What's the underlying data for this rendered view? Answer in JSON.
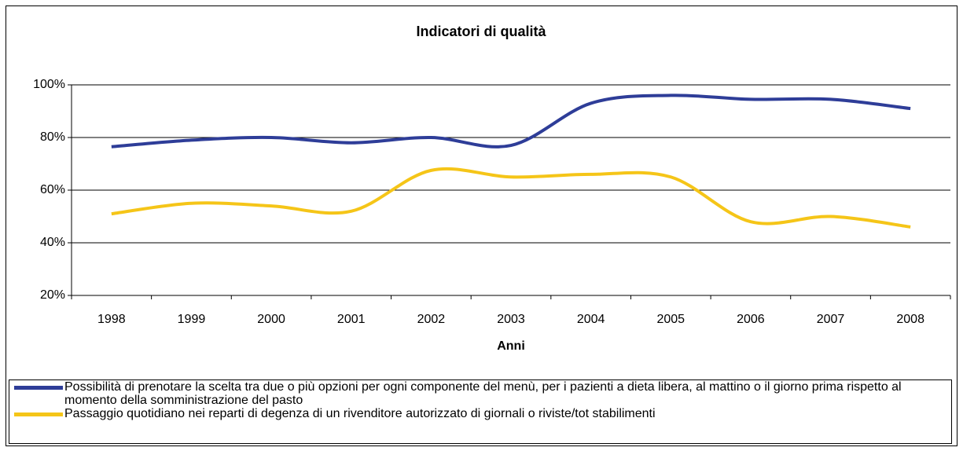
{
  "chart_data": {
    "type": "line",
    "title": "Indicatori di qualità",
    "x_label": "Anni",
    "categories": [
      "1998",
      "1999",
      "2000",
      "2001",
      "2002",
      "2003",
      "2004",
      "2005",
      "2006",
      "2007",
      "2008"
    ],
    "series": [
      {
        "name": "Possibilità di prenotare la scelta tra due o più opzioni per ogni componente del menù, per i pazienti a dieta libera, al mattino o il giorno prima rispetto al momento della somministrazione del pasto",
        "color": "#2e3d98",
        "values": [
          76.5,
          79,
          80,
          78,
          80,
          77,
          93,
          96,
          94.5,
          94.5,
          91
        ]
      },
      {
        "name": "Passaggio quotidiano nei reparti di degenza di un rivenditore autorizzato di giornali o riviste/tot stabilimenti",
        "color": "#f5c518",
        "values": [
          51,
          55,
          54,
          52,
          67.5,
          65,
          66,
          65,
          48,
          50,
          46
        ]
      }
    ],
    "ylim": [
      20,
      100
    ],
    "yticks": [
      {
        "value": 20,
        "label": "20%"
      },
      {
        "value": 40,
        "label": "40%"
      },
      {
        "value": 60,
        "label": "60%"
      },
      {
        "value": 80,
        "label": "80%"
      },
      {
        "value": 100,
        "label": "100%"
      }
    ],
    "grid": true,
    "legend": "bottom"
  }
}
